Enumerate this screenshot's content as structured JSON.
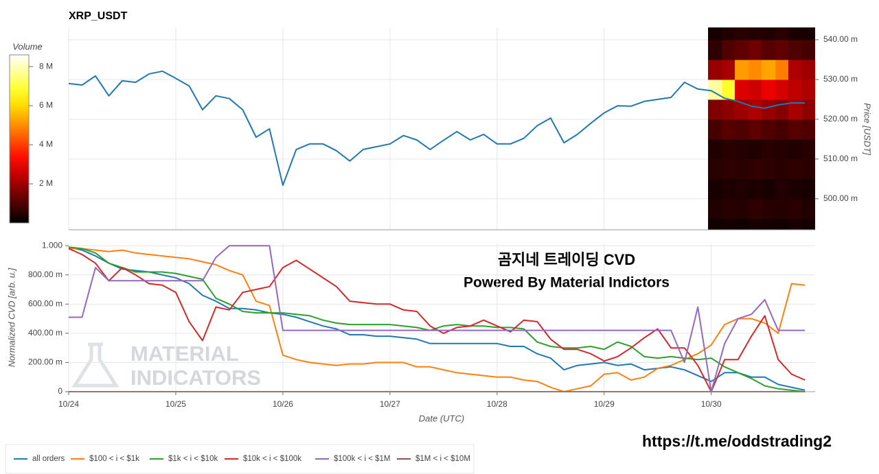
{
  "chart_data": [
    {
      "type": "line",
      "title": "XRP_USDT",
      "y_label": "Price [USDT]",
      "color": "#1f77b4",
      "grid": true,
      "x": [
        0,
        0.125,
        0.25,
        0.375,
        0.5,
        0.625,
        0.75,
        0.875,
        1,
        1.125,
        1.25,
        1.375,
        1.5,
        1.625,
        1.75,
        1.875,
        2,
        2.125,
        2.25,
        2.375,
        2.5,
        2.625,
        2.75,
        2.875,
        3,
        3.125,
        3.25,
        3.375,
        3.5,
        3.625,
        3.75,
        3.875,
        4,
        4.125,
        4.25,
        4.375,
        4.5,
        4.625,
        4.75,
        4.875,
        5,
        5.125,
        5.25,
        5.375,
        5.5,
        5.625,
        5.75,
        5.875,
        6,
        6.125,
        6.25,
        6.375,
        6.5,
        6.625,
        6.75,
        6.875
      ],
      "values": [
        529.0,
        528.6,
        530.9,
        525.9,
        529.7,
        529.3,
        531.4,
        532.1,
        530.3,
        528.4,
        522.4,
        525.9,
        525.2,
        522.4,
        515.5,
        517.6,
        503.4,
        512.4,
        513.8,
        513.8,
        512.1,
        509.5,
        512.4,
        513.1,
        513.8,
        515.9,
        514.8,
        512.4,
        514.7,
        516.9,
        514.8,
        516.2,
        513.8,
        513.8,
        515.2,
        518.4,
        520.3,
        514.1,
        516.2,
        519.0,
        521.6,
        523.4,
        523.3,
        524.5,
        525.0,
        525.5,
        529.3,
        527.6,
        527.2,
        525.3,
        524.5,
        523.3,
        522.8,
        523.6,
        524.1,
        524.1
      ],
      "xlim": [
        0,
        6.97
      ],
      "xticks": [
        0,
        1,
        2,
        3,
        4,
        5,
        6
      ],
      "ylim": [
        492.2,
        543.1
      ],
      "yticks": [
        {
          "value": 500,
          "label": "500.00 m"
        },
        {
          "value": 510,
          "label": "510.00 m"
        },
        {
          "value": 520,
          "label": "520.00 m"
        },
        {
          "value": 530,
          "label": "530.00 m"
        },
        {
          "value": 540,
          "label": "540.00 m"
        }
      ],
      "heatmap": {
        "x_bins": [
          5.97,
          6.1,
          6.22,
          6.35,
          6.47,
          6.6,
          6.72,
          6.85,
          6.97
        ],
        "y_bins": [
          490,
          495,
          500,
          505,
          510,
          515,
          520,
          525,
          530,
          535,
          540,
          545
        ],
        "values": [
          [
            200000,
            250000,
            200000,
            300000,
            250000,
            200000,
            300000,
            250000
          ],
          [
            400000,
            500000,
            450000,
            600000,
            500000,
            450000,
            550000,
            400000
          ],
          [
            300000,
            350000,
            400000,
            350000,
            300000,
            400000,
            350000,
            300000
          ],
          [
            500000,
            600000,
            550000,
            650000,
            600000,
            500000,
            600000,
            550000
          ],
          [
            400000,
            500000,
            450000,
            400000,
            500000,
            450000,
            400000,
            500000
          ],
          [
            900000,
            1100000,
            1000000,
            1200000,
            1000000,
            900000,
            1100000,
            1000000
          ],
          [
            1600000,
            1800000,
            2000000,
            2200000,
            1900000,
            1700000,
            2100000,
            1800000
          ],
          [
            7800000,
            6800000,
            2800000,
            2600000,
            3000000,
            2700000,
            2400000,
            2200000
          ],
          [
            1900000,
            2100000,
            5200000,
            5000000,
            5300000,
            4800000,
            2200000,
            2000000
          ],
          [
            600000,
            1000000,
            1200000,
            1400000,
            1100000,
            1200000,
            1000000,
            900000
          ],
          [
            300000,
            400000,
            500000,
            450000,
            400000,
            500000,
            350000,
            300000
          ]
        ]
      },
      "colorbar": {
        "label": "Volume",
        "colormap": "hot",
        "zlim": [
          0,
          8600000
        ],
        "ticks": [
          {
            "value": 2000000,
            "label": "2 M"
          },
          {
            "value": 4000000,
            "label": "4 M"
          },
          {
            "value": 6000000,
            "label": "6 M"
          },
          {
            "value": 8000000,
            "label": "8 M"
          }
        ]
      }
    },
    {
      "type": "line",
      "x_label": "Date (UTC)",
      "y_label": "Normalized CVD [arb. u.]",
      "grid": true,
      "annotations": [
        "곰지네 트레이딩 CVD",
        "Powered By Material Indictors"
      ],
      "x": [
        0,
        0.125,
        0.25,
        0.375,
        0.5,
        0.625,
        0.75,
        0.875,
        1,
        1.125,
        1.25,
        1.375,
        1.5,
        1.625,
        1.75,
        1.875,
        2,
        2.125,
        2.25,
        2.375,
        2.5,
        2.625,
        2.75,
        2.875,
        3,
        3.125,
        3.25,
        3.375,
        3.5,
        3.625,
        3.75,
        3.875,
        4,
        4.125,
        4.25,
        4.375,
        4.5,
        4.625,
        4.75,
        4.875,
        5,
        5.125,
        5.25,
        5.375,
        5.5,
        5.625,
        5.75,
        5.875,
        6,
        6.125,
        6.25,
        6.375,
        6.5,
        6.625,
        6.75,
        6.875
      ],
      "xlim": [
        0,
        6.97
      ],
      "xticks": [
        {
          "value": 0,
          "label": "10/24"
        },
        {
          "value": 1,
          "label": "10/25"
        },
        {
          "value": 2,
          "label": "10/26"
        },
        {
          "value": 3,
          "label": "10/27"
        },
        {
          "value": 4,
          "label": "10/28"
        },
        {
          "value": 5,
          "label": "10/29"
        },
        {
          "value": 6,
          "label": "10/30"
        }
      ],
      "ylim": [
        0,
        1.015
      ],
      "yticks": [
        0,
        {
          "value": 0.2,
          "label": "200.00 m"
        },
        {
          "value": 0.4,
          "label": "400.00 m"
        },
        {
          "value": 0.6,
          "label": "600.00 m"
        },
        {
          "value": 0.8,
          "label": "800.00 m"
        },
        {
          "value": 1,
          "label": "1.000"
        }
      ],
      "series": [
        {
          "name": "all orders",
          "color": "#1f77b4",
          "values": [
            0.99,
            0.97,
            0.93,
            0.88,
            0.84,
            0.83,
            0.82,
            0.8,
            0.78,
            0.74,
            0.66,
            0.62,
            0.57,
            0.57,
            0.56,
            0.54,
            0.53,
            0.51,
            0.48,
            0.45,
            0.43,
            0.39,
            0.39,
            0.38,
            0.38,
            0.37,
            0.36,
            0.33,
            0.33,
            0.33,
            0.33,
            0.33,
            0.33,
            0.31,
            0.31,
            0.26,
            0.23,
            0.15,
            0.18,
            0.19,
            0.2,
            0.18,
            0.19,
            0.15,
            0.16,
            0.17,
            0.15,
            0.11,
            0.07,
            0.13,
            0.13,
            0.1,
            0.1,
            0.05,
            0.03,
            0.01
          ]
        },
        {
          "name": "$100 < i < $1k",
          "color": "#ff7f0e",
          "values": [
            0.98,
            0.98,
            0.97,
            0.96,
            0.97,
            0.95,
            0.94,
            0.93,
            0.92,
            0.91,
            0.89,
            0.87,
            0.83,
            0.8,
            0.62,
            0.59,
            0.25,
            0.22,
            0.2,
            0.19,
            0.18,
            0.19,
            0.19,
            0.2,
            0.2,
            0.2,
            0.17,
            0.17,
            0.15,
            0.13,
            0.12,
            0.11,
            0.1,
            0.1,
            0.08,
            0.07,
            0.03,
            0.0,
            0.02,
            0.04,
            0.12,
            0.13,
            0.08,
            0.1,
            0.16,
            0.18,
            0.22,
            0.26,
            0.32,
            0.46,
            0.5,
            0.5,
            0.47,
            0.4,
            0.74,
            0.73
          ]
        },
        {
          "name": "$1k < i < $10k",
          "color": "#2ca02c",
          "values": [
            0.99,
            0.98,
            0.95,
            0.88,
            0.85,
            0.82,
            0.82,
            0.82,
            0.81,
            0.79,
            0.77,
            0.64,
            0.6,
            0.55,
            0.54,
            0.54,
            0.54,
            0.53,
            0.52,
            0.49,
            0.47,
            0.46,
            0.46,
            0.46,
            0.46,
            0.45,
            0.44,
            0.42,
            0.45,
            0.46,
            0.45,
            0.45,
            0.44,
            0.44,
            0.43,
            0.34,
            0.31,
            0.3,
            0.3,
            0.31,
            0.29,
            0.34,
            0.31,
            0.24,
            0.23,
            0.24,
            0.23,
            0.22,
            0.23,
            0.17,
            0.13,
            0.09,
            0.04,
            0.02,
            0.01,
            0.0
          ]
        },
        {
          "name": "$10k < i < $100k",
          "color": "#d62728",
          "values": [
            0.98,
            0.94,
            0.88,
            0.76,
            0.85,
            0.8,
            0.74,
            0.73,
            0.68,
            0.48,
            0.35,
            0.58,
            0.56,
            0.68,
            0.7,
            0.72,
            0.85,
            0.9,
            0.84,
            0.78,
            0.72,
            0.62,
            0.61,
            0.6,
            0.6,
            0.56,
            0.55,
            0.45,
            0.4,
            0.44,
            0.45,
            0.49,
            0.45,
            0.41,
            0.49,
            0.48,
            0.36,
            0.29,
            0.29,
            0.26,
            0.21,
            0.24,
            0.3,
            0.37,
            0.43,
            0.3,
            0.3,
            0.18,
            0.0,
            0.22,
            0.22,
            0.38,
            0.52,
            0.22,
            0.12,
            0.08
          ]
        },
        {
          "name": "$100k < i < $1M",
          "color": "#9467bd",
          "values": [
            0.51,
            0.51,
            0.85,
            0.76,
            0.76,
            0.76,
            0.76,
            0.76,
            0.76,
            0.76,
            0.76,
            0.92,
            1.0,
            1.0,
            1.0,
            1.0,
            0.42,
            0.42,
            0.42,
            0.42,
            0.42,
            0.42,
            0.42,
            0.42,
            0.42,
            0.42,
            0.42,
            0.42,
            0.42,
            0.42,
            0.42,
            0.42,
            0.42,
            0.42,
            0.42,
            0.42,
            0.42,
            0.42,
            0.42,
            0.42,
            0.42,
            0.42,
            0.42,
            0.42,
            0.42,
            0.42,
            0.2,
            0.58,
            0.0,
            0.33,
            0.5,
            0.53,
            0.63,
            0.42,
            0.42,
            0.42
          ]
        },
        {
          "name": "$1M < i < $10M",
          "color": "#8c564b",
          "values": [
            0,
            0,
            0,
            0,
            0,
            0,
            0,
            0,
            0,
            0,
            0,
            0,
            0,
            0,
            0,
            0,
            0,
            0,
            0,
            0,
            0,
            0,
            0,
            0,
            0,
            0,
            0,
            0,
            0,
            0,
            0,
            0,
            0,
            0,
            0,
            0,
            0,
            0,
            0,
            0,
            0,
            0,
            0,
            0,
            0,
            0,
            0,
            0,
            0,
            0,
            0,
            0,
            0,
            0,
            0,
            0
          ]
        }
      ]
    }
  ],
  "watermark": [
    "MATERIAL",
    "INDICATORS"
  ],
  "link": "https://t.me/oddstrading2"
}
